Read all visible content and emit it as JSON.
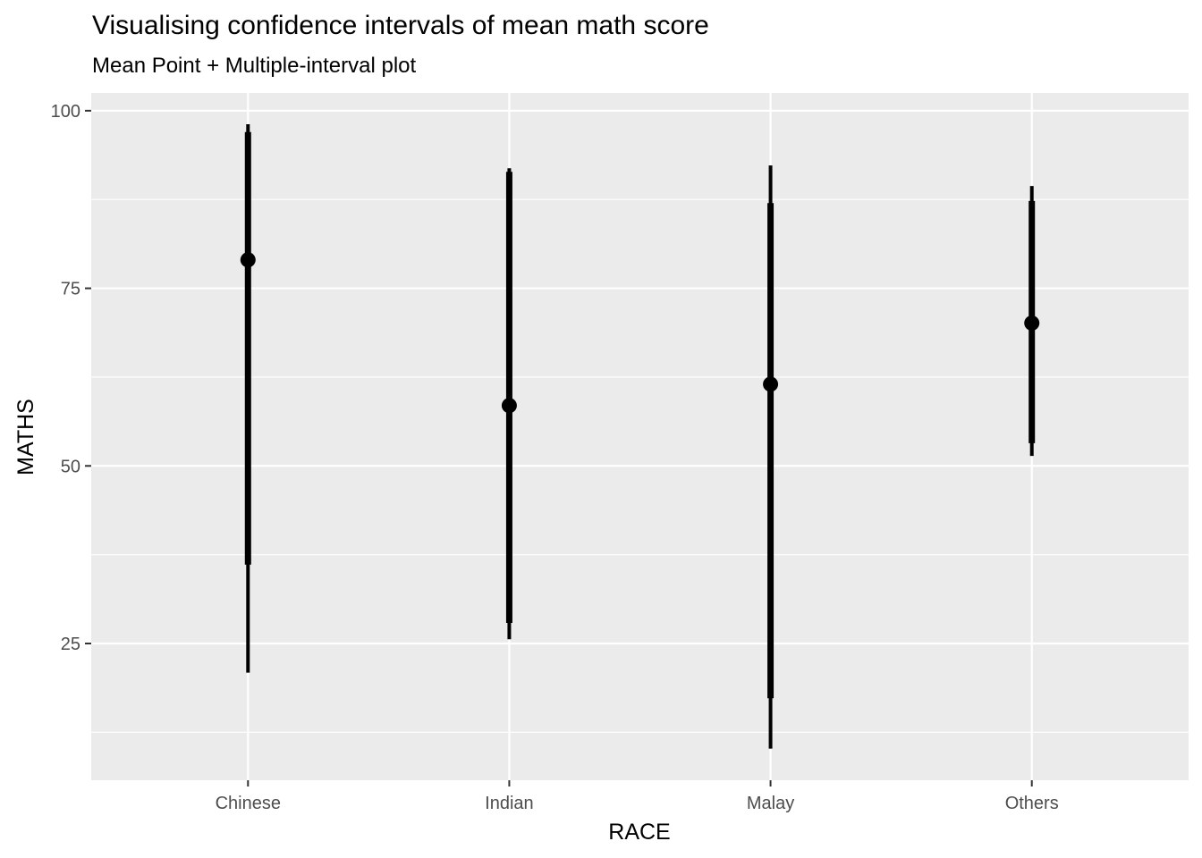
{
  "chart_data": {
    "type": "interval",
    "title": "Visualising confidence intervals of mean math score",
    "subtitle": "Mean Point + Multiple-interval plot",
    "xlabel": "RACE",
    "ylabel": "MATHS",
    "categories": [
      "Chinese",
      "Indian",
      "Malay",
      "Others"
    ],
    "ylim": [
      5.75,
      102.5
    ],
    "yticks": [
      25,
      50,
      75,
      100
    ],
    "ytick_labels": [
      "25",
      "50",
      "75",
      "100"
    ],
    "grid": true,
    "legend": "none",
    "colors": {
      "panel": "#ebebeb",
      "grid": "#ffffff",
      "marks": "#000000",
      "tick_text": "#4d4d4d"
    },
    "series": [
      {
        "name": "Chinese",
        "mean": 79.0,
        "inner_interval": [
          36.1,
          97.0
        ],
        "outer_interval": [
          20.9,
          98.1
        ]
      },
      {
        "name": "Indian",
        "mean": 58.5,
        "inner_interval": [
          27.9,
          91.4
        ],
        "outer_interval": [
          25.6,
          91.9
        ]
      },
      {
        "name": "Malay",
        "mean": 61.5,
        "inner_interval": [
          17.3,
          87.0
        ],
        "outer_interval": [
          10.2,
          92.3
        ]
      },
      {
        "name": "Others",
        "mean": 70.1,
        "inner_interval": [
          53.2,
          87.3
        ],
        "outer_interval": [
          51.4,
          89.4
        ]
      }
    ]
  }
}
